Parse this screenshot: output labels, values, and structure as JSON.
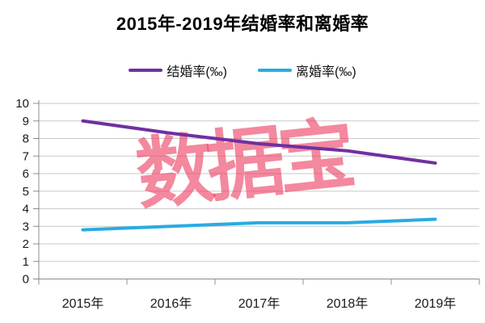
{
  "title": "2015年-2019年结婚率和离婚率",
  "watermark": "数据宝",
  "colors": {
    "marriage_line": "#7030A0",
    "divorce_line": "#29ABE2",
    "watermark": "#EC3F63",
    "gridline": "#C9C9C9",
    "axis": "#8C8C8C",
    "tick_label": "#1A1A1A"
  },
  "chart_data": {
    "type": "line",
    "title": "2015年-2019年结婚率和离婚率",
    "categories": [
      "2015年",
      "2016年",
      "2017年",
      "2018年",
      "2019年"
    ],
    "series": [
      {
        "name": "结婚率(‰)",
        "color": "#7030A0",
        "values": [
          9.0,
          8.3,
          7.7,
          7.3,
          6.6
        ]
      },
      {
        "name": "离婚率(‰)",
        "color": "#29ABE2",
        "values": [
          2.8,
          3.0,
          3.2,
          3.2,
          3.4
        ]
      }
    ],
    "xlabel": "",
    "ylabel": "",
    "ylim": [
      0,
      10
    ],
    "ytick_step": 1,
    "grid": true,
    "legend_position": "top"
  }
}
